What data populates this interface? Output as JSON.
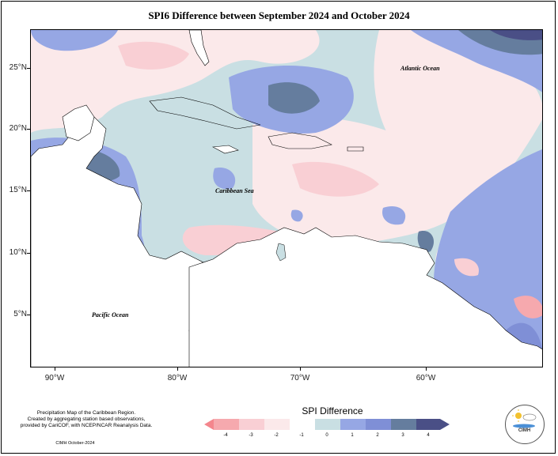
{
  "title": "SPI6 Difference between September 2024 and October 2024",
  "map": {
    "latitude_labels": [
      "25°N",
      "20°N",
      "15°N",
      "10°N",
      "5°N"
    ],
    "longitude_labels": [
      "90°W",
      "80°W",
      "70°W",
      "60°W"
    ],
    "place_labels": {
      "atlantic": "Atlantic Ocean",
      "caribbean": "Caribbean Sea",
      "pacific": "Pacific Ocean"
    }
  },
  "legend": {
    "title": "SPI Difference",
    "ticks": [
      "-4",
      "-3",
      "-2",
      "-1",
      "0",
      "1",
      "2",
      "3",
      "4"
    ],
    "colors": [
      "#f4868d",
      "#f6a9ae",
      "#f9cfd4",
      "#fbe9ea",
      "#c9dfe3",
      "#96a7e4",
      "#7f8fd6",
      "#657d9e",
      "#4a4f86"
    ]
  },
  "credits": {
    "line1": "Precipitation Map of the Caribbean Region.",
    "line2": "Created by aggregating station based observations,",
    "line3": "provided by CariCOF, with NCEP/NCAR Reanalysis Data.",
    "footer": "CIMH October-2024"
  },
  "logo": {
    "text": "CIMH"
  }
}
